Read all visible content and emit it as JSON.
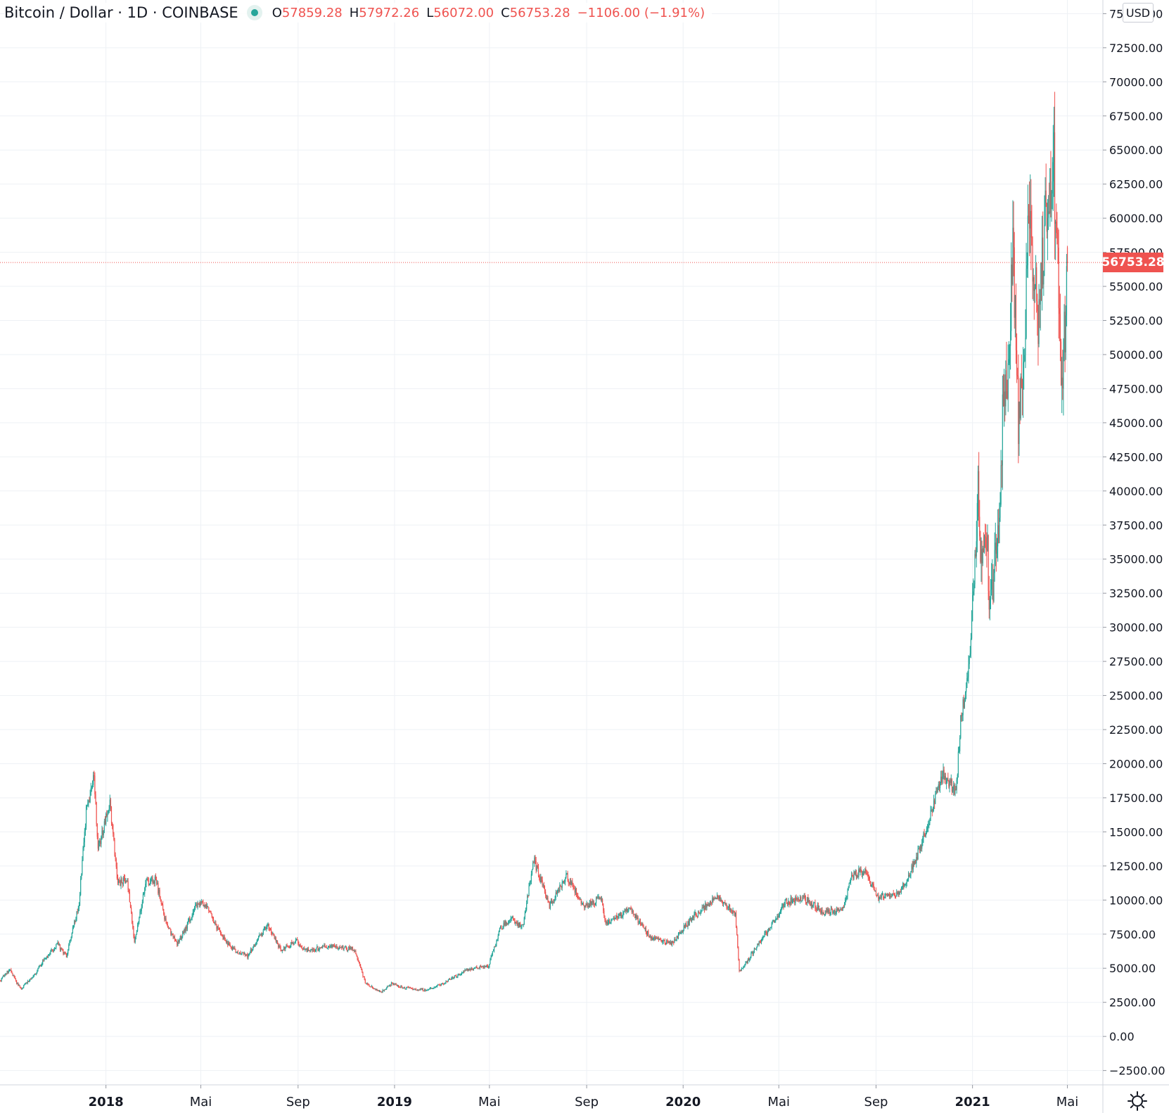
{
  "legend": {
    "symbol": "Bitcoin / Dollar",
    "interval": "1D",
    "exchange": "COINBASE",
    "title": "Bitcoin / Dollar · 1D · COINBASE",
    "open_label": "O",
    "open": "57859.28",
    "high_label": "H",
    "high": "57972.26",
    "low_label": "L",
    "low": "56072.00",
    "close_label": "C",
    "close": "56753.28",
    "change": "−1106.00 (−1.91%)"
  },
  "price_scale": {
    "currency": "USD",
    "last_price_label": "56753.28",
    "tick_labels": [
      "75000.00",
      "72500.00",
      "70000.00",
      "67500.00",
      "65000.00",
      "62500.00",
      "60000.00",
      "57500.00",
      "55000.00",
      "52500.00",
      "50000.00",
      "47500.00",
      "45000.00",
      "42500.00",
      "40000.00",
      "37500.00",
      "35000.00",
      "32500.00",
      "30000.00",
      "27500.00",
      "25000.00",
      "22500.00",
      "20000.00",
      "17500.00",
      "15000.00",
      "12500.00",
      "10000.00",
      "7500.00",
      "5000.00",
      "2500.00",
      "0.00",
      "−2500.00"
    ]
  },
  "time_scale": {
    "tick_labels": [
      "2018",
      "Mai",
      "Sep",
      "2019",
      "Mai",
      "Sep",
      "2020",
      "Mai",
      "Sep",
      "2021",
      "Mai"
    ],
    "bold_labels": [
      "2018",
      "2019",
      "2020",
      "2021"
    ]
  },
  "colors": {
    "up": "#26a69a",
    "down": "#ef5350",
    "grid": "#eef1f5",
    "axis_text": "#131722",
    "price_line": "#ef5350"
  },
  "icons": {
    "status": "market-status-dot-icon",
    "settings": "gear-icon"
  },
  "chart_data": {
    "type": "candlestick",
    "interval": "1D",
    "x_ticks": [
      {
        "date": "2018-01-01",
        "label": "2018"
      },
      {
        "date": "2018-05-01",
        "label": "Mai"
      },
      {
        "date": "2018-09-01",
        "label": "Sep"
      },
      {
        "date": "2019-01-01",
        "label": "2019"
      },
      {
        "date": "2019-05-01",
        "label": "Mai"
      },
      {
        "date": "2019-09-01",
        "label": "Sep"
      },
      {
        "date": "2020-01-01",
        "label": "2020"
      },
      {
        "date": "2020-05-01",
        "label": "Mai"
      },
      {
        "date": "2020-09-01",
        "label": "Sep"
      },
      {
        "date": "2021-01-01",
        "label": "2021"
      },
      {
        "date": "2021-05-01",
        "label": "Mai"
      }
    ],
    "xlim": [
      "2017-08-20",
      "2021-06-14"
    ],
    "ylim": [
      -3500,
      76000
    ],
    "y_tick_step": 2500,
    "last_close": 56753.28,
    "price_series": [
      [
        "2017-08-20",
        4100
      ],
      [
        "2017-09-01",
        4900
      ],
      [
        "2017-09-15",
        3500
      ],
      [
        "2017-10-01",
        4350
      ],
      [
        "2017-10-15",
        5700
      ],
      [
        "2017-11-01",
        6750
      ],
      [
        "2017-11-12",
        5900
      ],
      [
        "2017-11-28",
        9800
      ],
      [
        "2017-12-07",
        16500
      ],
      [
        "2017-12-17",
        19200
      ],
      [
        "2017-12-22",
        13800
      ],
      [
        "2018-01-06",
        17100
      ],
      [
        "2018-01-16",
        11200
      ],
      [
        "2018-01-28",
        11500
      ],
      [
        "2018-02-06",
        6900
      ],
      [
        "2018-02-20",
        11300
      ],
      [
        "2018-03-05",
        11500
      ],
      [
        "2018-03-18",
        8200
      ],
      [
        "2018-04-01",
        6800
      ],
      [
        "2018-04-12",
        7900
      ],
      [
        "2018-04-24",
        9600
      ],
      [
        "2018-05-05",
        9800
      ],
      [
        "2018-05-28",
        7300
      ],
      [
        "2018-06-13",
        6300
      ],
      [
        "2018-06-29",
        5900
      ],
      [
        "2018-07-24",
        8200
      ],
      [
        "2018-08-10",
        6300
      ],
      [
        "2018-08-30",
        7000
      ],
      [
        "2018-09-10",
        6300
      ],
      [
        "2018-10-10",
        6600
      ],
      [
        "2018-11-10",
        6400
      ],
      [
        "2018-11-19",
        5100
      ],
      [
        "2018-11-25",
        3900
      ],
      [
        "2018-12-15",
        3250
      ],
      [
        "2018-12-29",
        3900
      ],
      [
        "2019-01-10",
        3600
      ],
      [
        "2019-02-07",
        3400
      ],
      [
        "2019-03-01",
        3800
      ],
      [
        "2019-04-02",
        4900
      ],
      [
        "2019-04-30",
        5200
      ],
      [
        "2019-05-15",
        8000
      ],
      [
        "2019-05-30",
        8600
      ],
      [
        "2019-06-12",
        8000
      ],
      [
        "2019-06-26",
        13000
      ],
      [
        "2019-07-16",
        9500
      ],
      [
        "2019-08-06",
        11800
      ],
      [
        "2019-08-29",
        9500
      ],
      [
        "2019-09-20",
        10200
      ],
      [
        "2019-09-25",
        8200
      ],
      [
        "2019-10-25",
        9300
      ],
      [
        "2019-11-22",
        7200
      ],
      [
        "2019-12-17",
        6800
      ],
      [
        "2020-01-14",
        8800
      ],
      [
        "2020-02-13",
        10300
      ],
      [
        "2020-03-07",
        9000
      ],
      [
        "2020-03-12",
        4900
      ],
      [
        "2020-03-16",
        5000
      ],
      [
        "2020-04-01",
        6400
      ],
      [
        "2020-04-29",
        8800
      ],
      [
        "2020-05-09",
        9800
      ],
      [
        "2020-06-01",
        10200
      ],
      [
        "2020-06-26",
        9100
      ],
      [
        "2020-07-20",
        9200
      ],
      [
        "2020-08-01",
        11800
      ],
      [
        "2020-08-17",
        12100
      ],
      [
        "2020-09-05",
        10100
      ],
      [
        "2020-10-01",
        10600
      ],
      [
        "2020-10-21",
        12900
      ],
      [
        "2020-11-05",
        15500
      ],
      [
        "2020-11-24",
        19200
      ],
      [
        "2020-12-11",
        18000
      ],
      [
        "2020-12-17",
        23000
      ],
      [
        "2020-12-27",
        27000
      ],
      [
        "2021-01-02",
        32000
      ],
      [
        "2021-01-08",
        40600
      ],
      [
        "2021-01-11",
        35600
      ],
      [
        "2021-01-20",
        35500
      ],
      [
        "2021-01-22",
        30800
      ],
      [
        "2021-02-05",
        38000
      ],
      [
        "2021-02-08",
        46300
      ],
      [
        "2021-02-15",
        48800
      ],
      [
        "2021-02-21",
        57500
      ],
      [
        "2021-02-28",
        45000
      ],
      [
        "2021-03-08",
        51000
      ],
      [
        "2021-03-13",
        61000
      ],
      [
        "2021-03-25",
        52000
      ],
      [
        "2021-04-02",
        59000
      ],
      [
        "2021-04-14",
        63500
      ],
      [
        "2021-04-23",
        50000
      ],
      [
        "2021-04-25",
        48000
      ],
      [
        "2021-05-01",
        56753
      ]
    ]
  }
}
